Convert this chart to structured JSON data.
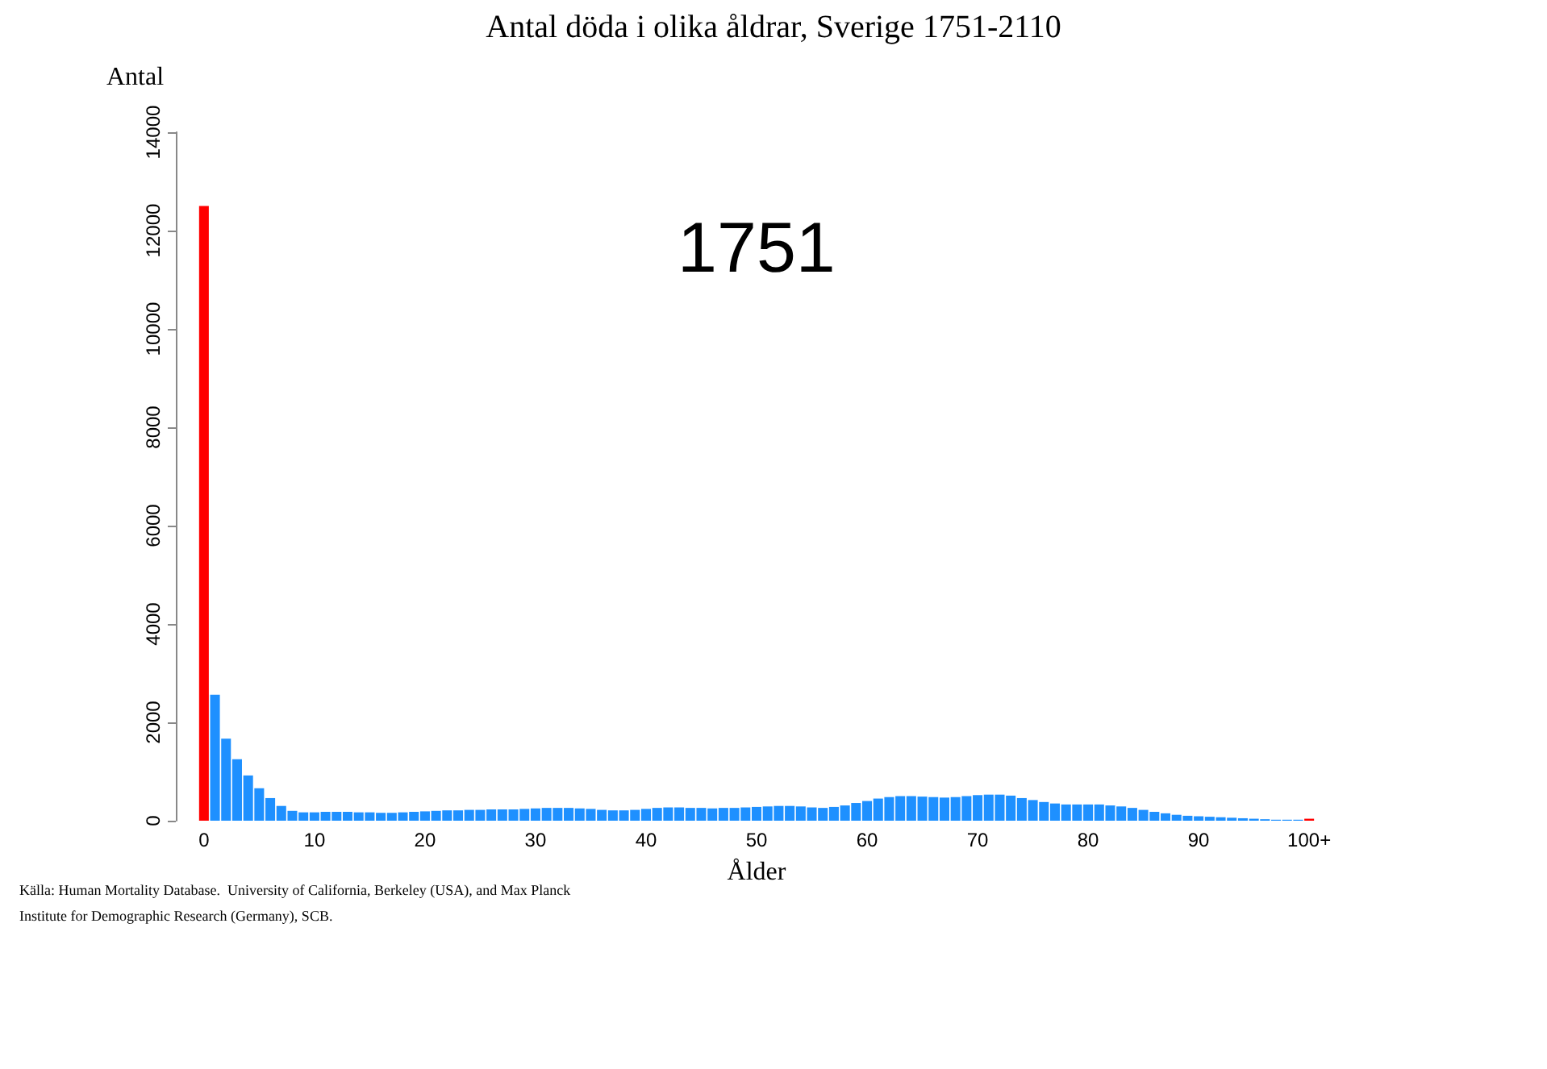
{
  "chart_data": {
    "type": "bar",
    "title": "Antal döda i olika åldrar, Sverige 1751-2110",
    "ylabel": "Antal",
    "xlabel": "Ålder",
    "annotations": [
      "1751",
      "Källa: Human Mortality Database.  University of California, Berkeley (USA), and Max Planck Institute for Demographic Research (Germany), SCB."
    ],
    "categories": [
      "0",
      null,
      null,
      null,
      null,
      null,
      null,
      null,
      null,
      null,
      "10",
      null,
      null,
      null,
      null,
      null,
      null,
      null,
      null,
      null,
      "20",
      null,
      null,
      null,
      null,
      null,
      null,
      null,
      null,
      null,
      "30",
      null,
      null,
      null,
      null,
      null,
      null,
      null,
      null,
      null,
      "40",
      null,
      null,
      null,
      null,
      null,
      null,
      null,
      null,
      null,
      "50",
      null,
      null,
      null,
      null,
      null,
      null,
      null,
      null,
      null,
      "60",
      null,
      null,
      null,
      null,
      null,
      null,
      null,
      null,
      null,
      "70",
      null,
      null,
      null,
      null,
      null,
      null,
      null,
      null,
      null,
      "80",
      null,
      null,
      null,
      null,
      null,
      null,
      null,
      null,
      null,
      "90",
      null,
      null,
      null,
      null,
      null,
      null,
      null,
      null,
      null,
      "100+"
    ],
    "values": [
      12500,
      2560,
      1670,
      1250,
      920,
      660,
      460,
      300,
      200,
      170,
      170,
      180,
      180,
      180,
      170,
      170,
      160,
      160,
      170,
      180,
      190,
      200,
      210,
      210,
      220,
      220,
      230,
      230,
      230,
      240,
      250,
      260,
      260,
      260,
      250,
      240,
      220,
      210,
      210,
      220,
      240,
      260,
      270,
      270,
      260,
      260,
      250,
      260,
      260,
      270,
      280,
      290,
      300,
      300,
      290,
      270,
      260,
      280,
      310,
      360,
      400,
      450,
      480,
      500,
      500,
      490,
      480,
      470,
      480,
      500,
      520,
      530,
      530,
      510,
      460,
      420,
      380,
      350,
      330,
      330,
      330,
      330,
      310,
      290,
      260,
      220,
      180,
      150,
      120,
      100,
      90,
      80,
      70,
      60,
      50,
      40,
      30,
      20,
      20,
      20,
      40
    ],
    "colors": [
      "#ff0000",
      "#1e90ff",
      "#1e90ff",
      "#1e90ff",
      "#1e90ff",
      "#1e90ff",
      "#1e90ff",
      "#1e90ff",
      "#1e90ff",
      "#1e90ff",
      "#1e90ff",
      "#1e90ff",
      "#1e90ff",
      "#1e90ff",
      "#1e90ff",
      "#1e90ff",
      "#1e90ff",
      "#1e90ff",
      "#1e90ff",
      "#1e90ff",
      "#1e90ff",
      "#1e90ff",
      "#1e90ff",
      "#1e90ff",
      "#1e90ff",
      "#1e90ff",
      "#1e90ff",
      "#1e90ff",
      "#1e90ff",
      "#1e90ff",
      "#1e90ff",
      "#1e90ff",
      "#1e90ff",
      "#1e90ff",
      "#1e90ff",
      "#1e90ff",
      "#1e90ff",
      "#1e90ff",
      "#1e90ff",
      "#1e90ff",
      "#1e90ff",
      "#1e90ff",
      "#1e90ff",
      "#1e90ff",
      "#1e90ff",
      "#1e90ff",
      "#1e90ff",
      "#1e90ff",
      "#1e90ff",
      "#1e90ff",
      "#1e90ff",
      "#1e90ff",
      "#1e90ff",
      "#1e90ff",
      "#1e90ff",
      "#1e90ff",
      "#1e90ff",
      "#1e90ff",
      "#1e90ff",
      "#1e90ff",
      "#1e90ff",
      "#1e90ff",
      "#1e90ff",
      "#1e90ff",
      "#1e90ff",
      "#1e90ff",
      "#1e90ff",
      "#1e90ff",
      "#1e90ff",
      "#1e90ff",
      "#1e90ff",
      "#1e90ff",
      "#1e90ff",
      "#1e90ff",
      "#1e90ff",
      "#1e90ff",
      "#1e90ff",
      "#1e90ff",
      "#1e90ff",
      "#1e90ff",
      "#1e90ff",
      "#1e90ff",
      "#1e90ff",
      "#1e90ff",
      "#1e90ff",
      "#1e90ff",
      "#1e90ff",
      "#1e90ff",
      "#1e90ff",
      "#1e90ff",
      "#1e90ff",
      "#1e90ff",
      "#1e90ff",
      "#1e90ff",
      "#1e90ff",
      "#1e90ff",
      "#1e90ff",
      "#1e90ff",
      "#1e90ff",
      "#1e90ff",
      "#ff0000"
    ],
    "ylim": [
      0,
      14000
    ],
    "yticks": [
      0,
      2000,
      4000,
      6000,
      8000,
      10000,
      12000,
      14000
    ],
    "grid": false
  }
}
